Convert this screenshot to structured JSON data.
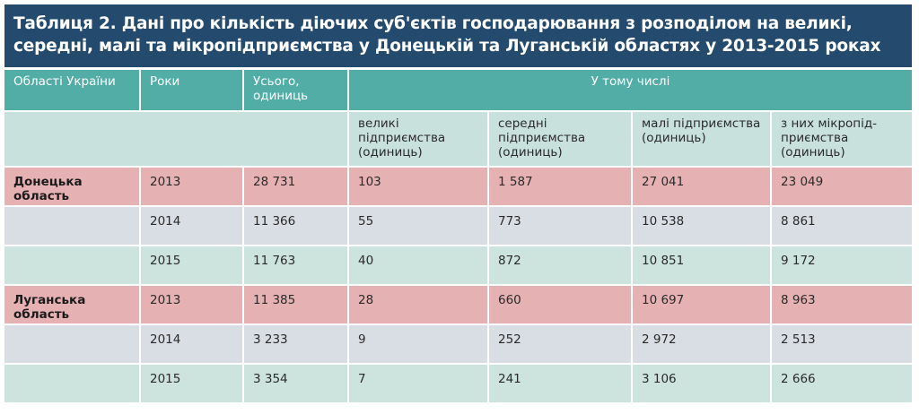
{
  "title": "Таблиця 2. Дані про кількість діючих суб'єктів господарювання з розподілом на великі, середні, малі та мікропідприємства у Донецькій та Луганській областях у 2013-2015 роках",
  "colors": {
    "title_bg": "#244b6e",
    "header_bg": "#52ada6",
    "subheader_bg": "#c9e1dd",
    "row_2013": "#e6b1b3",
    "row_2014": "#d9dee5",
    "row_2015": "#cde3de"
  },
  "header": {
    "region": "Області України",
    "year": "Роки",
    "total": "Усього, одиниць",
    "including": "У тому числі",
    "large": "великі підприємства (одиниць)",
    "medium": "середні підприємства (одиниць)",
    "small": "малі підприємства (одиниць)",
    "micro": "з них мікропід-приємства (одиниць)"
  },
  "rows": [
    {
      "region": "Донецька область",
      "year": "2013",
      "total": "28 731",
      "large": "103",
      "medium": "1 587",
      "small": "27 041",
      "micro": "23 049"
    },
    {
      "region": "",
      "year": "2014",
      "total": "11 366",
      "large": "55",
      "medium": "773",
      "small": "10 538",
      "micro": "8 861"
    },
    {
      "region": "",
      "year": "2015",
      "total": "11 763",
      "large": "40",
      "medium": "872",
      "small": "10 851",
      "micro": "9 172"
    },
    {
      "region": "Луганська область",
      "year": "2013",
      "total": "11 385",
      "large": "28",
      "medium": "660",
      "small": "10 697",
      "micro": "8 963"
    },
    {
      "region": "",
      "year": "2014",
      "total": "3 233",
      "large": "9",
      "medium": "252",
      "small": "2 972",
      "micro": "2 513"
    },
    {
      "region": "",
      "year": "2015",
      "total": "3 354",
      "large": "7",
      "medium": "241",
      "small": "3 106",
      "micro": "2 666"
    }
  ]
}
